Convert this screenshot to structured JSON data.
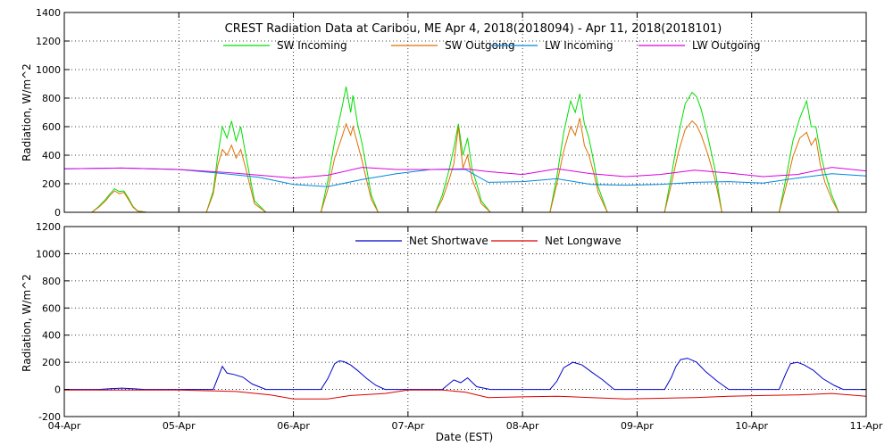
{
  "title": "CREST Radiation Data at Caribou, ME   Apr  4, 2018(2018094) - Apr 11, 2018(2018101)",
  "xlabel": "Date (EST)",
  "colors": {
    "sw_in": "#00e000",
    "sw_out": "#e07000",
    "lw_in": "#0088dd",
    "lw_out": "#dd00dd",
    "net_sw": "#0000cc",
    "net_lw": "#dd0000"
  },
  "chart_data": [
    {
      "type": "line",
      "ylabel": "Radiation, W/m^2",
      "ylim": [
        0,
        1400
      ],
      "yticks": [
        0,
        200,
        400,
        600,
        800,
        1000,
        1200,
        1400
      ],
      "xlim": [
        0,
        7
      ],
      "x_tick_labels": [
        "04-Apr",
        "05-Apr",
        "06-Apr",
        "07-Apr",
        "08-Apr",
        "09-Apr",
        "10-Apr",
        "11-Apr"
      ],
      "grid": true,
      "legend": "top-center",
      "x_units": "days since 04-Apr 00:00 EST",
      "series": [
        {
          "name": "SW Incoming",
          "color_key": "sw_in",
          "x": [
            0.0,
            0.24,
            0.3,
            0.36,
            0.4,
            0.44,
            0.48,
            0.52,
            0.56,
            0.6,
            0.64,
            0.72,
            1.24,
            1.3,
            1.34,
            1.38,
            1.42,
            1.46,
            1.5,
            1.54,
            1.58,
            1.62,
            1.66,
            1.76,
            2.24,
            2.3,
            2.36,
            2.42,
            2.46,
            2.5,
            2.52,
            2.56,
            2.6,
            2.64,
            2.68,
            2.74,
            3.24,
            3.3,
            3.36,
            3.4,
            3.44,
            3.48,
            3.52,
            3.56,
            3.6,
            3.64,
            3.72,
            4.24,
            4.3,
            4.36,
            4.42,
            4.46,
            4.5,
            4.54,
            4.58,
            4.62,
            4.66,
            4.74,
            5.24,
            5.3,
            5.36,
            5.42,
            5.48,
            5.52,
            5.56,
            5.62,
            5.68,
            5.74,
            6.24,
            6.3,
            6.36,
            6.42,
            6.48,
            6.52,
            6.56,
            6.6,
            6.64,
            6.7,
            6.76,
            7.0
          ],
          "y": [
            0,
            0,
            40,
            90,
            130,
            165,
            145,
            150,
            100,
            40,
            10,
            0,
            0,
            150,
            400,
            600,
            520,
            640,
            500,
            600,
            420,
            250,
            80,
            0,
            0,
            220,
            500,
            720,
            880,
            700,
            820,
            620,
            480,
            300,
            120,
            0,
            0,
            120,
            300,
            450,
            620,
            400,
            520,
            300,
            200,
            80,
            0,
            0,
            250,
            560,
            780,
            700,
            830,
            620,
            520,
            360,
            180,
            0,
            0,
            260,
            540,
            760,
            840,
            810,
            720,
            520,
            300,
            0,
            0,
            240,
            500,
            660,
            780,
            600,
            600,
            420,
            280,
            120,
            0,
            0
          ]
        },
        {
          "name": "SW Outgoing",
          "color_key": "sw_out",
          "x": [
            0.0,
            0.24,
            0.3,
            0.36,
            0.4,
            0.44,
            0.48,
            0.52,
            0.56,
            0.6,
            0.64,
            0.72,
            1.24,
            1.3,
            1.34,
            1.38,
            1.42,
            1.46,
            1.5,
            1.54,
            1.58,
            1.62,
            1.66,
            1.76,
            2.24,
            2.3,
            2.36,
            2.42,
            2.46,
            2.5,
            2.52,
            2.56,
            2.6,
            2.64,
            2.68,
            2.74,
            3.24,
            3.3,
            3.36,
            3.4,
            3.44,
            3.48,
            3.52,
            3.56,
            3.6,
            3.64,
            3.72,
            4.24,
            4.3,
            4.36,
            4.42,
            4.46,
            4.5,
            4.54,
            4.58,
            4.62,
            4.66,
            4.74,
            5.24,
            5.3,
            5.36,
            5.42,
            5.48,
            5.52,
            5.56,
            5.62,
            5.68,
            5.74,
            6.24,
            6.3,
            6.36,
            6.42,
            6.48,
            6.52,
            6.56,
            6.6,
            6.64,
            6.7,
            6.76,
            7.0
          ],
          "y": [
            0,
            0,
            35,
            80,
            120,
            150,
            130,
            140,
            90,
            35,
            8,
            0,
            0,
            130,
            330,
            440,
            400,
            470,
            380,
            440,
            320,
            190,
            60,
            0,
            0,
            160,
            380,
            520,
            620,
            540,
            600,
            480,
            360,
            220,
            90,
            0,
            0,
            90,
            230,
            340,
            600,
            310,
            400,
            230,
            150,
            60,
            0,
            0,
            200,
            430,
            600,
            540,
            660,
            470,
            400,
            280,
            140,
            0,
            0,
            200,
            420,
            580,
            640,
            610,
            540,
            400,
            230,
            0,
            0,
            180,
            390,
            520,
            560,
            470,
            520,
            330,
            210,
            90,
            0,
            0
          ]
        },
        {
          "name": "LW Incoming",
          "color_key": "lw_in",
          "x": [
            0.0,
            0.5,
            1.0,
            1.4,
            1.7,
            2.0,
            2.3,
            2.6,
            2.9,
            3.2,
            3.5,
            3.7,
            4.0,
            4.3,
            4.6,
            4.9,
            5.2,
            5.5,
            5.8,
            6.1,
            6.4,
            6.7,
            7.0
          ],
          "y": [
            305,
            310,
            300,
            270,
            245,
            195,
            180,
            230,
            270,
            300,
            300,
            210,
            215,
            235,
            195,
            190,
            195,
            210,
            215,
            205,
            240,
            270,
            255
          ]
        },
        {
          "name": "LW Outgoing",
          "color_key": "lw_out",
          "x": [
            0.0,
            0.5,
            1.0,
            1.4,
            1.7,
            2.0,
            2.3,
            2.6,
            2.9,
            3.2,
            3.5,
            3.7,
            4.0,
            4.3,
            4.6,
            4.9,
            5.2,
            5.5,
            5.8,
            6.1,
            6.4,
            6.7,
            7.0
          ],
          "y": [
            305,
            310,
            300,
            280,
            260,
            240,
            260,
            315,
            300,
            300,
            305,
            285,
            265,
            305,
            270,
            250,
            265,
            295,
            275,
            250,
            265,
            315,
            290
          ]
        }
      ]
    },
    {
      "type": "line",
      "ylabel": "Radiation, W/m^2",
      "ylim": [
        -200,
        1200
      ],
      "yticks": [
        -200,
        0,
        200,
        400,
        600,
        800,
        1000,
        1200
      ],
      "xlim": [
        0,
        7
      ],
      "x_tick_labels": [
        "04-Apr",
        "05-Apr",
        "06-Apr",
        "07-Apr",
        "08-Apr",
        "09-Apr",
        "10-Apr",
        "11-Apr"
      ],
      "grid": true,
      "legend": "top-center",
      "x_units": "days since 04-Apr 00:00 EST",
      "series": [
        {
          "name": "Net Shortwave",
          "color_key": "net_sw",
          "x": [
            0.0,
            0.3,
            0.4,
            0.5,
            0.6,
            0.7,
            1.0,
            1.3,
            1.38,
            1.42,
            1.48,
            1.56,
            1.64,
            1.76,
            2.24,
            2.3,
            2.36,
            2.4,
            2.44,
            2.5,
            2.56,
            2.64,
            2.72,
            2.8,
            3.3,
            3.4,
            3.46,
            3.52,
            3.6,
            3.72,
            4.24,
            4.3,
            4.36,
            4.44,
            4.52,
            4.6,
            4.7,
            4.8,
            5.24,
            5.3,
            5.34,
            5.38,
            5.44,
            5.52,
            5.6,
            5.7,
            5.8,
            6.24,
            6.3,
            6.34,
            6.4,
            6.46,
            6.54,
            6.62,
            6.72,
            6.8,
            7.0
          ],
          "y": [
            0,
            0,
            5,
            10,
            5,
            0,
            0,
            0,
            170,
            120,
            110,
            90,
            40,
            0,
            0,
            80,
            190,
            210,
            205,
            180,
            140,
            80,
            30,
            0,
            0,
            70,
            50,
            85,
            20,
            0,
            0,
            60,
            160,
            200,
            180,
            130,
            70,
            0,
            0,
            90,
            170,
            220,
            230,
            200,
            130,
            60,
            0,
            0,
            120,
            190,
            200,
            180,
            140,
            80,
            30,
            0,
            0
          ]
        },
        {
          "name": "Net Longwave",
          "color_key": "net_lw",
          "x": [
            0.0,
            0.5,
            1.0,
            1.5,
            1.8,
            2.0,
            2.3,
            2.5,
            2.8,
            3.0,
            3.3,
            3.5,
            3.7,
            4.0,
            4.3,
            4.6,
            4.9,
            5.2,
            5.5,
            5.8,
            6.1,
            6.4,
            6.7,
            7.0
          ],
          "y": [
            -5,
            -5,
            -5,
            -15,
            -40,
            -70,
            -70,
            -45,
            -30,
            -5,
            -5,
            -20,
            -60,
            -55,
            -50,
            -60,
            -70,
            -65,
            -60,
            -50,
            -45,
            -40,
            -30,
            -50
          ]
        }
      ]
    }
  ]
}
